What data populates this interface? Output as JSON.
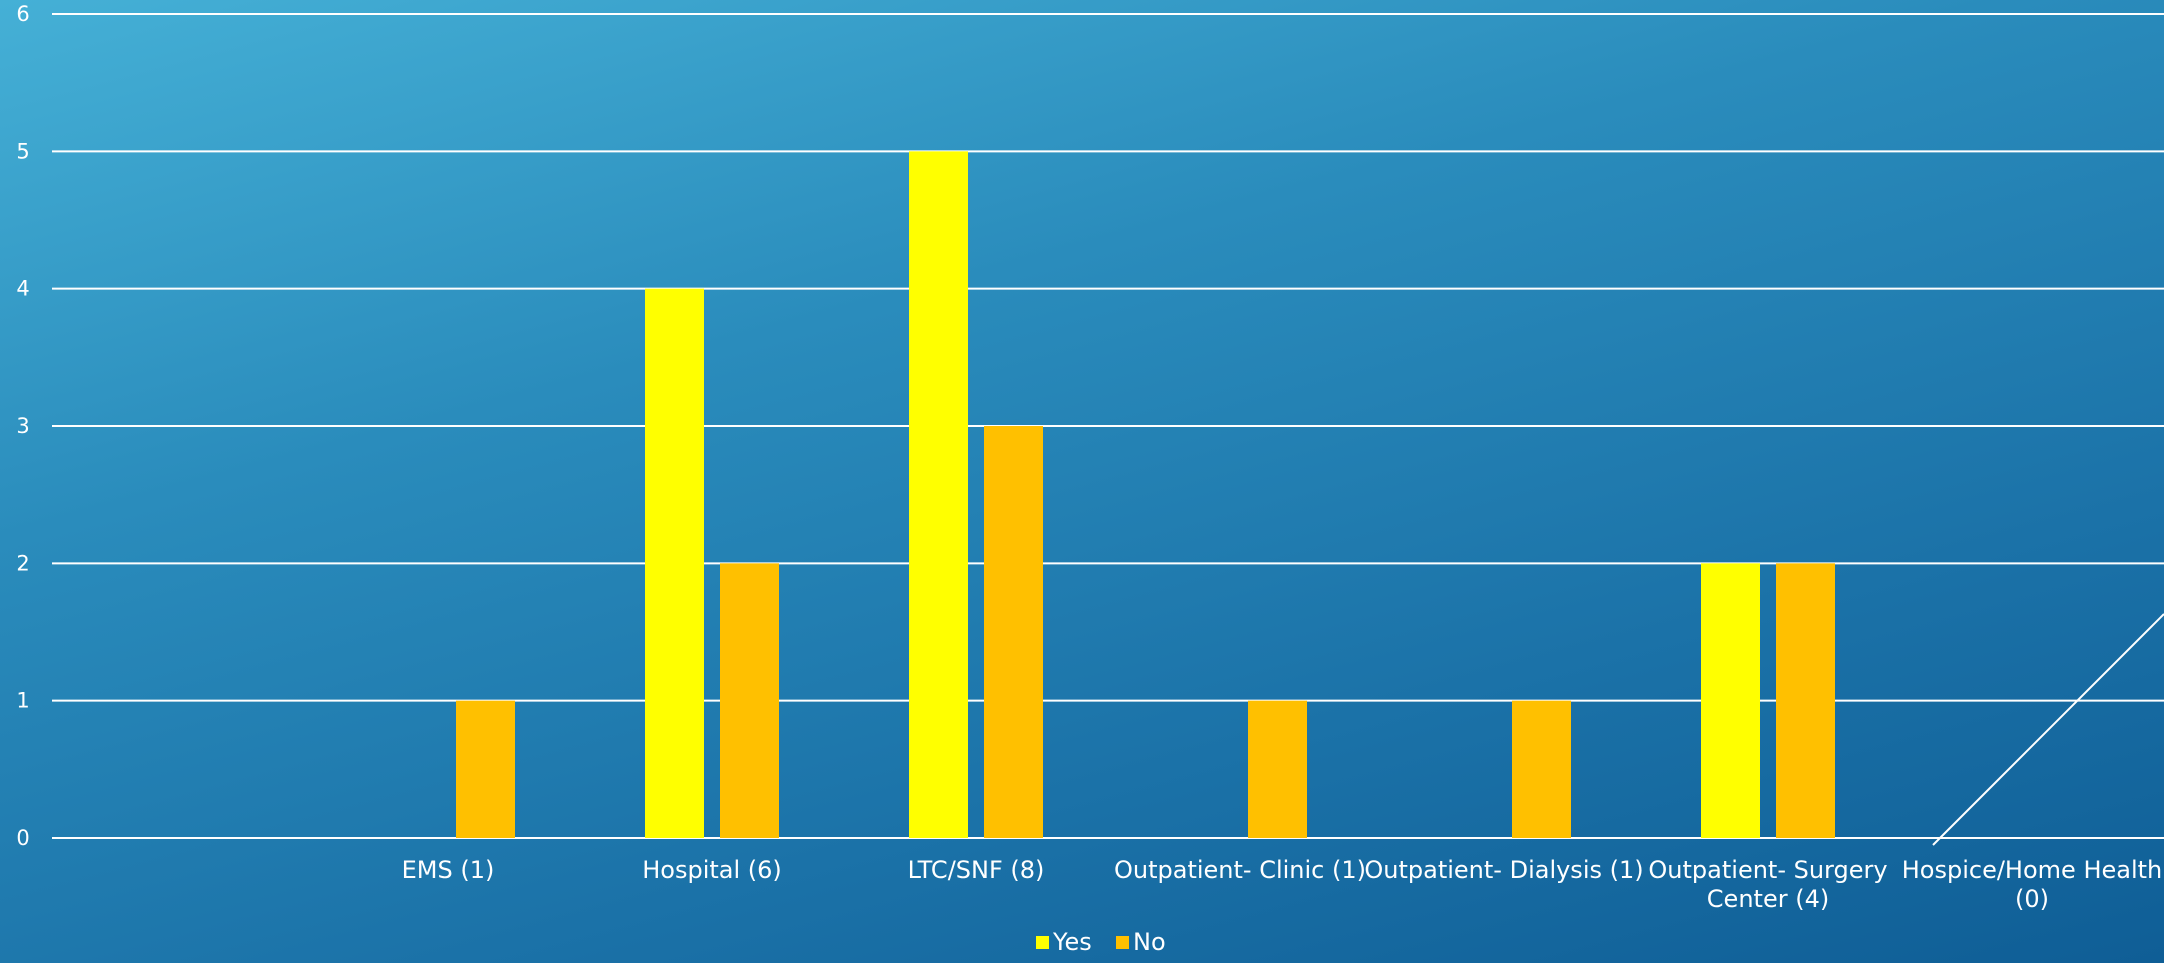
{
  "chart_data": {
    "type": "bar",
    "categories": [
      "",
      "EMS (1)",
      "Hospital (6)",
      "LTC/SNF (8)",
      "Outpatient- Clinic (1)",
      "Outpatient- Dialysis (1)",
      "Outpatient- Surgery Center (4)",
      "Hospice/Home Health (0)"
    ],
    "category_lines": [
      [],
      [
        "EMS (1)"
      ],
      [
        "Hospital (6)"
      ],
      [
        "LTC/SNF (8)"
      ],
      [
        "Outpatient- Clinic (1)"
      ],
      [
        "Outpatient- Dialysis (1)"
      ],
      [
        "Outpatient- Surgery",
        "Center (4)"
      ],
      [
        "Hospice/Home Health",
        "(0)"
      ]
    ],
    "series": [
      {
        "name": "Yes",
        "color": "#ffff00",
        "values": [
          0,
          0,
          4,
          5,
          0,
          0,
          2,
          0
        ]
      },
      {
        "name": "No",
        "color": "#ffc000",
        "values": [
          0,
          1,
          2,
          3,
          1,
          1,
          2,
          0
        ]
      }
    ],
    "ylim": [
      0,
      6
    ],
    "yticks": [
      0,
      1,
      2,
      3,
      4,
      5,
      6
    ],
    "grid": true,
    "legend": "bottom",
    "title": "",
    "xlabel": "",
    "ylabel": ""
  }
}
